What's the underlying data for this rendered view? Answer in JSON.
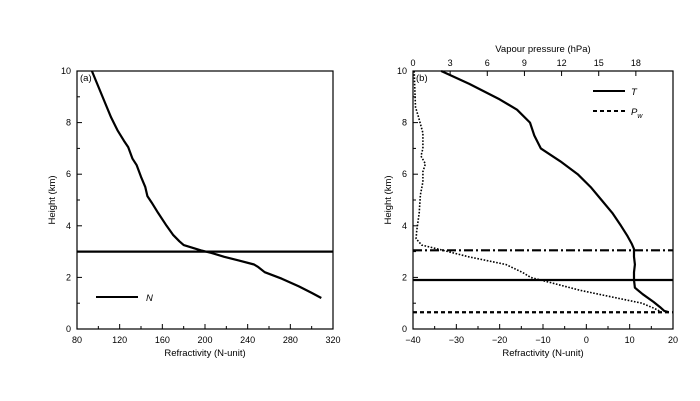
{
  "chart_data": [
    {
      "type": "line",
      "panel_label": "(a)",
      "xlabel": "Refractivity (N-unit)",
      "ylabel": "Height (km)",
      "xlim": [
        80,
        320
      ],
      "ylim": [
        0,
        10
      ],
      "xticks": [
        80,
        120,
        160,
        200,
        240,
        280,
        320
      ],
      "xtick_labels": [
        "80",
        "120",
        "160",
        "200",
        "240",
        "280",
        "320"
      ],
      "yticks": [
        0,
        2,
        4,
        6,
        8,
        10
      ],
      "ytick_labels": [
        "0",
        "2",
        "4",
        "6",
        "8",
        "10"
      ],
      "grid": false,
      "legend_position": "bottom-left",
      "series": [
        {
          "name": "N",
          "style": "solid",
          "points": [
            [
              94,
              10
            ],
            [
              100,
              9.4
            ],
            [
              106,
              8.8
            ],
            [
              112,
              8.2
            ],
            [
              118,
              7.7
            ],
            [
              124,
              7.3
            ],
            [
              128,
              7.05
            ],
            [
              132,
              6.6
            ],
            [
              136,
              6.35
            ],
            [
              140,
              5.9
            ],
            [
              144,
              5.5
            ],
            [
              146,
              5.15
            ],
            [
              150,
              4.9
            ],
            [
              156,
              4.5
            ],
            [
              164,
              4.0
            ],
            [
              170,
              3.65
            ],
            [
              176,
              3.4
            ],
            [
              180,
              3.25
            ],
            [
              188,
              3.15
            ],
            [
              196,
              3.05
            ],
            [
              206,
              2.95
            ],
            [
              218,
              2.8
            ],
            [
              232,
              2.65
            ],
            [
              246,
              2.5
            ],
            [
              250,
              2.4
            ],
            [
              256,
              2.2
            ],
            [
              272,
              1.95
            ],
            [
              288,
              1.65
            ],
            [
              300,
              1.4
            ],
            [
              309,
              1.2
            ]
          ]
        }
      ],
      "reference_lines": [
        {
          "axis": "y",
          "value": 3.0,
          "style": "solid"
        }
      ]
    },
    {
      "type": "line",
      "panel_label": "(b)",
      "xlabel": "Refractivity (N-unit)",
      "ylabel": "Height (km)",
      "x2label": "Vapour pressure (hPa)",
      "xlim": [
        -40,
        20
      ],
      "x2lim": [
        0,
        21
      ],
      "ylim": [
        0,
        10
      ],
      "xticks": [
        -40,
        -30,
        -20,
        -10,
        0,
        10,
        20
      ],
      "xtick_labels": [
        "−40",
        "−30",
        "−20",
        "−10",
        "0",
        "10",
        "20"
      ],
      "x2ticks": [
        0,
        3,
        6,
        9,
        12,
        15,
        18
      ],
      "x2tick_labels": [
        "0",
        "3",
        "6",
        "9",
        "12",
        "15",
        "18"
      ],
      "yticks": [
        0,
        2,
        4,
        6,
        8,
        10
      ],
      "ytick_labels": [
        "0",
        "2",
        "4",
        "6",
        "8",
        "10"
      ],
      "grid": false,
      "legend_position": "top-right",
      "series": [
        {
          "name": "T",
          "style": "solid",
          "axis": "x",
          "points": [
            [
              -33.5,
              10
            ],
            [
              -27,
              9.5
            ],
            [
              -20,
              8.9
            ],
            [
              -16,
              8.5
            ],
            [
              -13,
              8.0
            ],
            [
              -12,
              7.5
            ],
            [
              -10.5,
              7.0
            ],
            [
              -6,
              6.5
            ],
            [
              -2,
              6.0
            ],
            [
              1,
              5.5
            ],
            [
              3.5,
              5.0
            ],
            [
              6,
              4.5
            ],
            [
              8,
              4.0
            ],
            [
              9.5,
              3.6
            ],
            [
              10.5,
              3.3
            ],
            [
              11,
              3.1
            ],
            [
              11,
              2.8
            ],
            [
              11.2,
              2.5
            ],
            [
              11,
              2.2
            ],
            [
              11,
              1.9
            ],
            [
              11.2,
              1.6
            ],
            [
              13,
              1.35
            ],
            [
              15.5,
              1.05
            ],
            [
              17,
              0.85
            ],
            [
              18,
              0.7
            ],
            [
              19,
              0.65
            ]
          ]
        },
        {
          "name": "P_w",
          "style": "dotted",
          "axis": "x2",
          "points": [
            [
              0.1,
              10
            ],
            [
              0.15,
              9.2
            ],
            [
              0.2,
              8.6
            ],
            [
              0.45,
              8.2
            ],
            [
              0.8,
              7.6
            ],
            [
              0.8,
              7.0
            ],
            [
              0.65,
              6.7
            ],
            [
              1.0,
              6.4
            ],
            [
              0.8,
              6.1
            ],
            [
              0.8,
              5.7
            ],
            [
              0.6,
              5.2
            ],
            [
              0.5,
              4.5
            ],
            [
              0.3,
              3.8
            ],
            [
              0.25,
              3.5
            ],
            [
              0.7,
              3.25
            ],
            [
              2.0,
              3.1
            ],
            [
              4.5,
              2.8
            ],
            [
              7.5,
              2.5
            ],
            [
              8.8,
              2.2
            ],
            [
              9.0,
              2.15
            ],
            [
              9.5,
              2.0
            ],
            [
              13.5,
              1.5
            ],
            [
              16.0,
              1.25
            ],
            [
              18.5,
              1.0
            ],
            [
              19.5,
              0.8
            ],
            [
              20.0,
              0.67
            ]
          ]
        }
      ],
      "reference_lines": [
        {
          "axis": "y",
          "value": 3.05,
          "style": "dashdot"
        },
        {
          "axis": "y",
          "value": 1.9,
          "style": "solid"
        },
        {
          "axis": "y",
          "value": 0.65,
          "style": "dashed"
        }
      ]
    }
  ]
}
